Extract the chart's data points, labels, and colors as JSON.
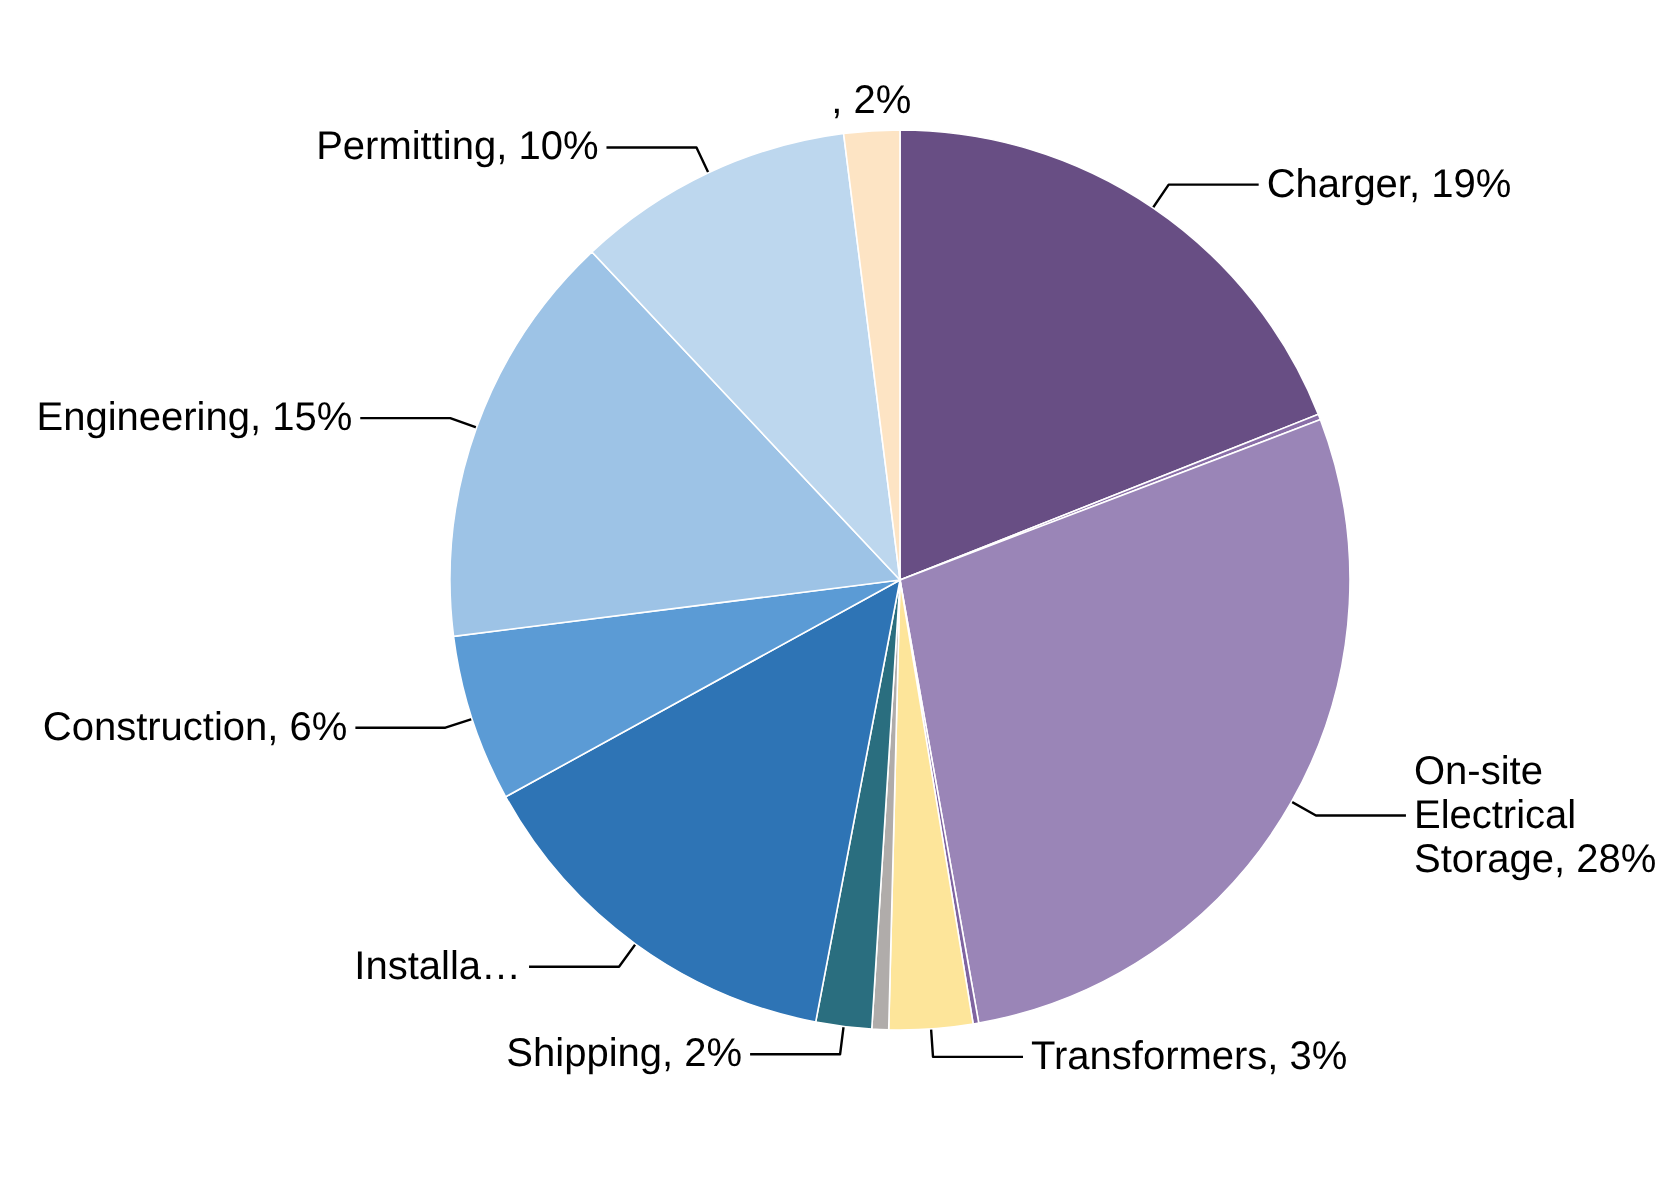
{
  "chart_data": {
    "type": "pie",
    "categories": [
      "Charger",
      null,
      "On-site Electrical Storage",
      null,
      "Transformers",
      null,
      "Shipping",
      "Installa…",
      "Construction",
      "Engineering",
      "Permitting",
      null
    ],
    "values": [
      19,
      0.2,
      28,
      0.2,
      3,
      0.6,
      2,
      14,
      6,
      15,
      10,
      2
    ],
    "value_labels": [
      "19%",
      null,
      "28%",
      null,
      "3%",
      null,
      "2%",
      null,
      "6%",
      "15%",
      "10%",
      ", 2%"
    ],
    "colors": [
      "#684e84",
      "#8a6fa8",
      "#9a85b7",
      "#7f64a0",
      "#fde59a",
      "#b0acaa",
      "#2a6e7f",
      "#2e74b5",
      "#5b9bd5",
      "#9dc3e6",
      "#bdd7ee",
      "#fde4c4"
    ]
  }
}
